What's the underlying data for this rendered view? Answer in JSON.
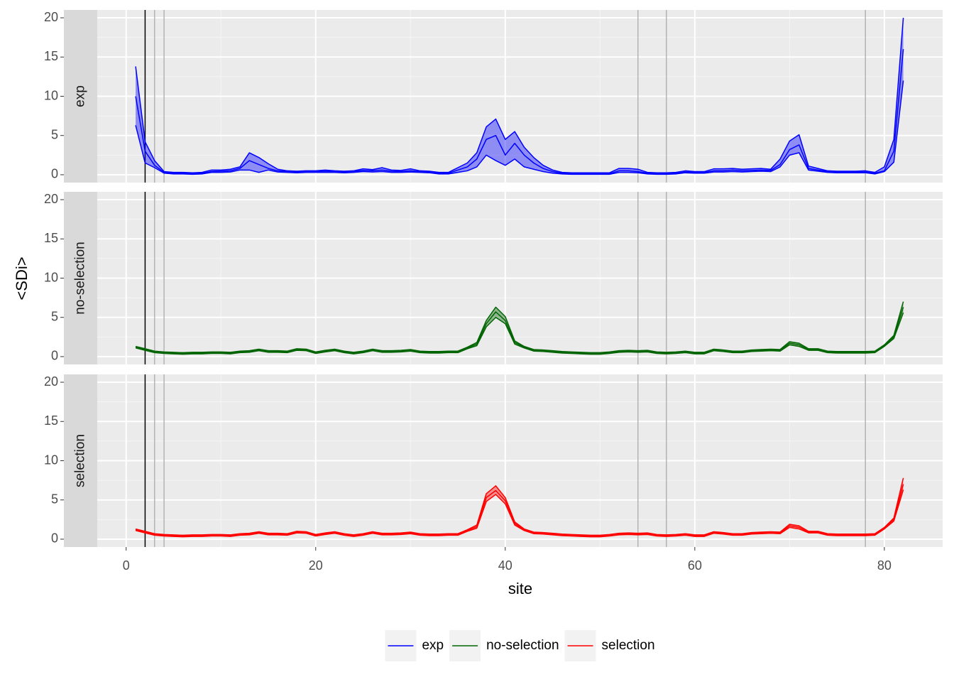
{
  "chart_data": {
    "type": "ribbon",
    "xlabel": "site",
    "ylabel": "<SDi>",
    "xlim": [
      -3.05,
      86.15
    ],
    "ylim": [
      -1,
      21
    ],
    "xticks": [
      0,
      20,
      40,
      60,
      80
    ],
    "yticks": [
      0,
      5,
      10,
      15,
      20
    ],
    "grid": true,
    "legend": "bottom",
    "vlines": [
      {
        "x": 2,
        "color": "#000000"
      },
      {
        "x": 3,
        "color": "#b3b3b3"
      },
      {
        "x": 4,
        "color": "#b3b3b3"
      },
      {
        "x": 54,
        "color": "#b3b3b3"
      },
      {
        "x": 57,
        "color": "#b3b3b3"
      },
      {
        "x": 78,
        "color": "#b3b3b3"
      }
    ],
    "x": [
      1,
      2,
      3,
      4,
      5,
      6,
      7,
      8,
      9,
      10,
      11,
      12,
      13,
      14,
      15,
      16,
      17,
      18,
      19,
      20,
      21,
      22,
      23,
      24,
      25,
      26,
      27,
      28,
      29,
      30,
      31,
      32,
      33,
      34,
      35,
      36,
      37,
      38,
      39,
      40,
      41,
      42,
      43,
      44,
      45,
      46,
      47,
      48,
      49,
      50,
      51,
      52,
      53,
      54,
      55,
      56,
      57,
      58,
      59,
      60,
      61,
      62,
      63,
      64,
      65,
      66,
      67,
      68,
      69,
      70,
      71,
      72,
      73,
      74,
      75,
      76,
      77,
      78,
      79,
      80,
      81,
      82
    ],
    "series": [
      {
        "name": "exp",
        "color": "#0000ff",
        "values": [
          10,
          3,
          1.2,
          0.3,
          0.2,
          0.2,
          0.15,
          0.2,
          0.4,
          0.45,
          0.5,
          0.8,
          1.8,
          1.3,
          0.8,
          0.5,
          0.4,
          0.35,
          0.4,
          0.4,
          0.45,
          0.4,
          0.35,
          0.4,
          0.55,
          0.5,
          0.6,
          0.45,
          0.4,
          0.5,
          0.4,
          0.35,
          0.2,
          0.2,
          0.6,
          1.0,
          2.0,
          4.5,
          5.0,
          2.5,
          4.0,
          2.5,
          1.5,
          0.8,
          0.4,
          0.2,
          0.15,
          0.15,
          0.15,
          0.15,
          0.15,
          0.5,
          0.5,
          0.4,
          0.2,
          0.15,
          0.15,
          0.2,
          0.35,
          0.3,
          0.3,
          0.5,
          0.5,
          0.6,
          0.5,
          0.55,
          0.6,
          0.55,
          1.3,
          3.2,
          3.8,
          0.8,
          0.6,
          0.4,
          0.35,
          0.35,
          0.35,
          0.35,
          0.2,
          0.5,
          3.0,
          16
        ],
        "lower": [
          6.3,
          1.5,
          0.9,
          0.2,
          0.1,
          0.1,
          0.05,
          0.1,
          0.3,
          0.3,
          0.35,
          0.6,
          0.6,
          0.3,
          0.6,
          0.35,
          0.3,
          0.25,
          0.3,
          0.3,
          0.3,
          0.3,
          0.25,
          0.3,
          0.4,
          0.35,
          0.4,
          0.3,
          0.3,
          0.35,
          0.3,
          0.25,
          0.1,
          0.1,
          0.3,
          0.5,
          1.0,
          2.5,
          1.8,
          1.2,
          2.0,
          1.0,
          0.7,
          0.4,
          0.2,
          0.1,
          0.05,
          0.05,
          0.05,
          0.05,
          0.05,
          0.3,
          0.3,
          0.25,
          0.1,
          0.05,
          0.05,
          0.1,
          0.25,
          0.2,
          0.2,
          0.35,
          0.35,
          0.4,
          0.35,
          0.4,
          0.45,
          0.4,
          1.0,
          2.5,
          2.8,
          0.6,
          0.45,
          0.3,
          0.25,
          0.25,
          0.25,
          0.25,
          0.1,
          0.4,
          1.6,
          12
        ],
        "upper": [
          13.8,
          4.2,
          1.8,
          0.4,
          0.3,
          0.3,
          0.25,
          0.3,
          0.6,
          0.6,
          0.7,
          1.0,
          2.8,
          2.2,
          1.4,
          0.7,
          0.5,
          0.45,
          0.5,
          0.5,
          0.6,
          0.5,
          0.45,
          0.5,
          0.75,
          0.65,
          0.9,
          0.6,
          0.55,
          0.75,
          0.5,
          0.45,
          0.3,
          0.3,
          0.9,
          1.5,
          2.8,
          6.1,
          7.1,
          4.5,
          5.5,
          3.5,
          2.2,
          1.2,
          0.6,
          0.3,
          0.25,
          0.25,
          0.25,
          0.25,
          0.25,
          0.8,
          0.8,
          0.7,
          0.3,
          0.25,
          0.25,
          0.3,
          0.5,
          0.4,
          0.4,
          0.75,
          0.75,
          0.8,
          0.7,
          0.75,
          0.8,
          0.7,
          2.0,
          4.3,
          5.1,
          1.1,
          0.8,
          0.5,
          0.45,
          0.45,
          0.45,
          0.5,
          0.3,
          1.0,
          4.5,
          20
        ]
      },
      {
        "name": "no-selection",
        "color": "#006400",
        "values": [
          1.2,
          0.9,
          0.6,
          0.5,
          0.45,
          0.4,
          0.45,
          0.45,
          0.5,
          0.5,
          0.45,
          0.6,
          0.65,
          0.85,
          0.65,
          0.65,
          0.6,
          0.9,
          0.85,
          0.5,
          0.7,
          0.85,
          0.6,
          0.45,
          0.6,
          0.85,
          0.65,
          0.65,
          0.7,
          0.8,
          0.6,
          0.55,
          0.55,
          0.6,
          0.6,
          1.1,
          1.6,
          4.2,
          5.7,
          4.6,
          1.8,
          1.2,
          0.8,
          0.75,
          0.65,
          0.55,
          0.5,
          0.45,
          0.4,
          0.4,
          0.5,
          0.65,
          0.7,
          0.65,
          0.7,
          0.5,
          0.45,
          0.5,
          0.6,
          0.45,
          0.45,
          0.85,
          0.75,
          0.6,
          0.6,
          0.75,
          0.8,
          0.85,
          0.8,
          1.7,
          1.5,
          0.9,
          0.9,
          0.6,
          0.55,
          0.55,
          0.55,
          0.55,
          0.6,
          1.4,
          2.5,
          6.3
        ],
        "lower": [
          1.1,
          0.8,
          0.5,
          0.4,
          0.35,
          0.3,
          0.35,
          0.35,
          0.4,
          0.4,
          0.35,
          0.5,
          0.55,
          0.75,
          0.55,
          0.55,
          0.5,
          0.8,
          0.75,
          0.4,
          0.6,
          0.75,
          0.5,
          0.35,
          0.5,
          0.75,
          0.55,
          0.55,
          0.6,
          0.7,
          0.5,
          0.45,
          0.45,
          0.5,
          0.5,
          1.0,
          1.4,
          3.8,
          5.0,
          4.2,
          1.6,
          1.1,
          0.7,
          0.65,
          0.55,
          0.45,
          0.4,
          0.35,
          0.3,
          0.3,
          0.4,
          0.55,
          0.6,
          0.55,
          0.6,
          0.4,
          0.35,
          0.4,
          0.5,
          0.35,
          0.35,
          0.75,
          0.65,
          0.5,
          0.5,
          0.65,
          0.7,
          0.75,
          0.7,
          1.5,
          1.3,
          0.8,
          0.8,
          0.5,
          0.45,
          0.45,
          0.45,
          0.45,
          0.5,
          1.3,
          2.3,
          5.6
        ],
        "upper": [
          1.3,
          1.0,
          0.7,
          0.6,
          0.55,
          0.5,
          0.55,
          0.55,
          0.6,
          0.6,
          0.55,
          0.7,
          0.75,
          0.95,
          0.75,
          0.75,
          0.7,
          1.0,
          0.95,
          0.6,
          0.8,
          0.95,
          0.7,
          0.55,
          0.7,
          0.95,
          0.75,
          0.75,
          0.8,
          0.9,
          0.7,
          0.65,
          0.65,
          0.7,
          0.7,
          1.2,
          1.8,
          4.6,
          6.3,
          5.1,
          2.0,
          1.3,
          0.9,
          0.85,
          0.75,
          0.65,
          0.6,
          0.55,
          0.5,
          0.5,
          0.6,
          0.75,
          0.8,
          0.75,
          0.8,
          0.6,
          0.55,
          0.6,
          0.7,
          0.55,
          0.55,
          0.95,
          0.85,
          0.7,
          0.7,
          0.85,
          0.9,
          0.95,
          0.9,
          1.9,
          1.7,
          1.0,
          1.0,
          0.7,
          0.65,
          0.65,
          0.65,
          0.65,
          0.7,
          1.5,
          2.7,
          7.0
        ]
      },
      {
        "name": "selection",
        "color": "#ff0000",
        "values": [
          1.2,
          0.9,
          0.6,
          0.5,
          0.45,
          0.4,
          0.45,
          0.45,
          0.5,
          0.5,
          0.45,
          0.6,
          0.65,
          0.85,
          0.65,
          0.65,
          0.6,
          0.9,
          0.85,
          0.5,
          0.7,
          0.85,
          0.6,
          0.45,
          0.6,
          0.85,
          0.65,
          0.65,
          0.7,
          0.8,
          0.6,
          0.55,
          0.55,
          0.6,
          0.6,
          1.1,
          1.6,
          5.3,
          6.2,
          4.9,
          2.0,
          1.2,
          0.8,
          0.75,
          0.65,
          0.55,
          0.5,
          0.45,
          0.4,
          0.4,
          0.5,
          0.65,
          0.7,
          0.65,
          0.7,
          0.5,
          0.45,
          0.5,
          0.6,
          0.45,
          0.45,
          0.85,
          0.75,
          0.6,
          0.6,
          0.75,
          0.8,
          0.85,
          0.8,
          1.7,
          1.5,
          0.9,
          0.9,
          0.6,
          0.55,
          0.55,
          0.55,
          0.55,
          0.6,
          1.4,
          2.5,
          7.0
        ],
        "lower": [
          1.1,
          0.8,
          0.5,
          0.4,
          0.35,
          0.3,
          0.35,
          0.35,
          0.4,
          0.4,
          0.35,
          0.5,
          0.55,
          0.75,
          0.55,
          0.55,
          0.5,
          0.8,
          0.75,
          0.4,
          0.6,
          0.75,
          0.5,
          0.35,
          0.5,
          0.75,
          0.55,
          0.55,
          0.6,
          0.7,
          0.5,
          0.45,
          0.45,
          0.5,
          0.5,
          1.0,
          1.4,
          4.8,
          5.7,
          4.5,
          1.8,
          1.1,
          0.7,
          0.65,
          0.55,
          0.45,
          0.4,
          0.35,
          0.3,
          0.3,
          0.4,
          0.55,
          0.6,
          0.55,
          0.6,
          0.4,
          0.35,
          0.4,
          0.5,
          0.35,
          0.35,
          0.75,
          0.65,
          0.5,
          0.5,
          0.65,
          0.7,
          0.75,
          0.7,
          1.5,
          1.3,
          0.8,
          0.8,
          0.5,
          0.45,
          0.45,
          0.45,
          0.45,
          0.5,
          1.3,
          2.3,
          6.3
        ],
        "upper": [
          1.3,
          1.0,
          0.7,
          0.6,
          0.55,
          0.5,
          0.55,
          0.55,
          0.6,
          0.6,
          0.55,
          0.7,
          0.75,
          0.95,
          0.75,
          0.75,
          0.7,
          1.0,
          0.95,
          0.6,
          0.8,
          0.95,
          0.7,
          0.55,
          0.7,
          0.95,
          0.75,
          0.75,
          0.8,
          0.9,
          0.7,
          0.65,
          0.65,
          0.7,
          0.7,
          1.2,
          1.8,
          5.8,
          6.8,
          5.3,
          2.2,
          1.3,
          0.9,
          0.85,
          0.75,
          0.65,
          0.6,
          0.55,
          0.5,
          0.5,
          0.6,
          0.75,
          0.8,
          0.75,
          0.8,
          0.6,
          0.55,
          0.6,
          0.7,
          0.55,
          0.55,
          0.95,
          0.85,
          0.7,
          0.7,
          0.85,
          0.9,
          0.95,
          0.9,
          1.9,
          1.7,
          1.0,
          1.0,
          0.7,
          0.65,
          0.65,
          0.65,
          0.65,
          0.7,
          1.5,
          2.7,
          7.8
        ]
      }
    ]
  }
}
